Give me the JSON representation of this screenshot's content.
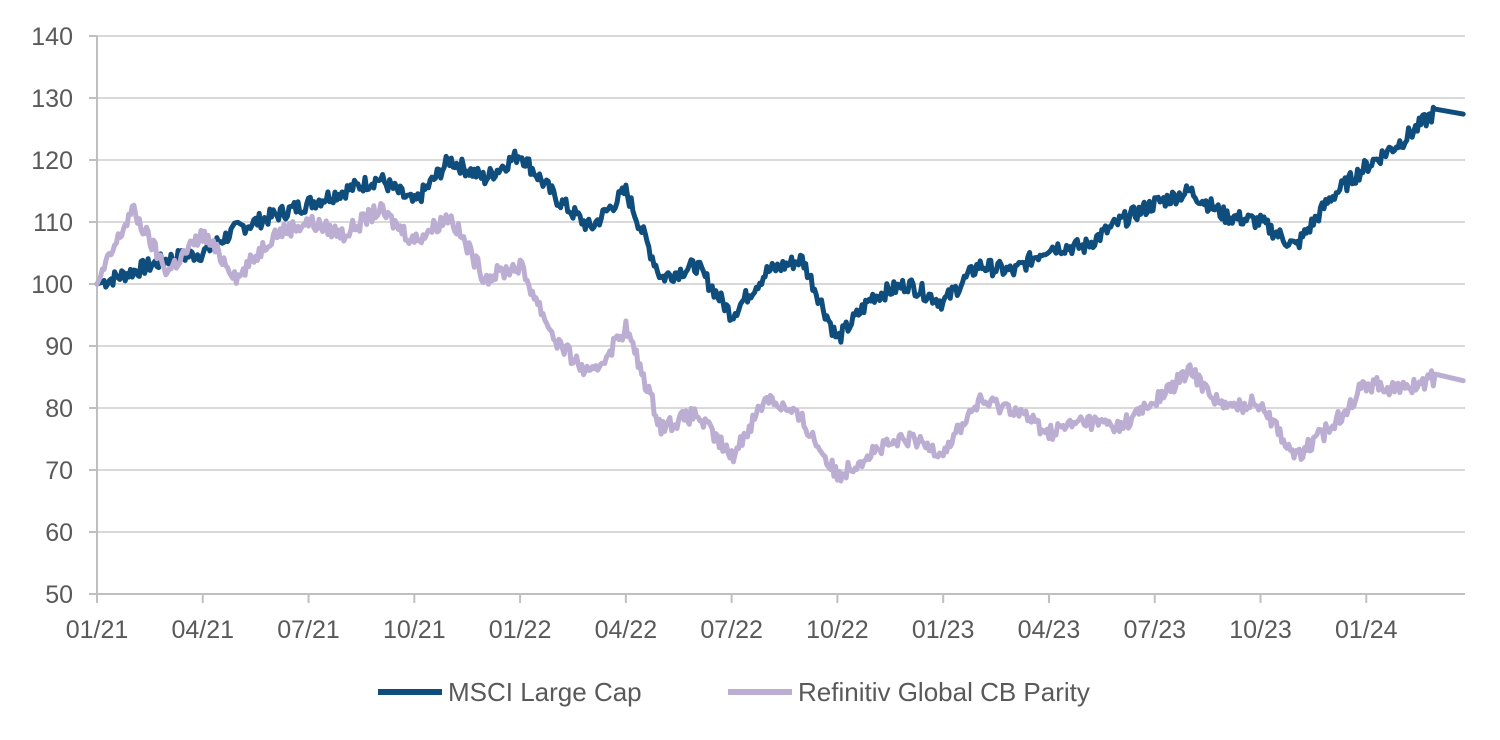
{
  "chart_data": {
    "type": "line",
    "title": "",
    "xlabel": "",
    "ylabel": "",
    "ylim": [
      50,
      140
    ],
    "y_ticks": [
      50,
      60,
      70,
      80,
      90,
      100,
      110,
      120,
      130,
      140
    ],
    "x_ticks": [
      "01/21",
      "04/21",
      "07/21",
      "10/21",
      "01/22",
      "04/22",
      "07/22",
      "10/22",
      "01/23",
      "04/23",
      "07/23",
      "10/23",
      "01/24"
    ],
    "x_range": [
      "2021-01",
      "2024-03"
    ],
    "grid": "horizontal",
    "legend_position": "bottom",
    "series": [
      {
        "name": "MSCI Large Cap",
        "color": "#0E4D7C",
        "x": [
          "2021-01",
          "2021-02",
          "2021-03",
          "2021-04",
          "2021-05",
          "2021-06",
          "2021-07",
          "2021-08",
          "2021-09",
          "2021-10",
          "2021-11",
          "2021-12",
          "2022-01",
          "2022-02",
          "2022-03",
          "2022-04",
          "2022-05",
          "2022-06",
          "2022-07",
          "2022-08",
          "2022-09",
          "2022-10",
          "2022-11",
          "2022-12",
          "2023-01",
          "2023-02",
          "2023-03",
          "2023-04",
          "2023-05",
          "2023-06",
          "2023-07",
          "2023-08",
          "2023-09",
          "2023-10",
          "2023-11",
          "2023-12",
          "2024-01",
          "2024-02",
          "2024-03"
        ],
        "values": [
          100,
          102,
          104,
          105,
          109,
          111,
          113,
          115,
          117,
          113,
          120,
          117,
          121,
          114,
          109,
          115,
          101,
          103,
          95,
          102,
          104,
          91,
          98,
          100,
          97,
          103,
          102,
          106,
          106,
          110,
          113,
          115,
          111,
          110,
          106,
          114,
          119,
          123,
          128
        ]
      },
      {
        "name": "Refinitiv Global CB Parity",
        "color": "#BCAED3",
        "x": [
          "2021-01",
          "2021-02",
          "2021-03",
          "2021-04",
          "2021-05",
          "2021-06",
          "2021-07",
          "2021-08",
          "2021-09",
          "2021-10",
          "2021-11",
          "2021-12",
          "2022-01",
          "2022-02",
          "2022-03",
          "2022-04",
          "2022-05",
          "2022-06",
          "2022-07",
          "2022-08",
          "2022-09",
          "2022-10",
          "2022-11",
          "2022-12",
          "2023-01",
          "2023-02",
          "2023-03",
          "2023-04",
          "2023-05",
          "2023-06",
          "2023-07",
          "2023-08",
          "2023-09",
          "2023-10",
          "2023-11",
          "2023-12",
          "2024-01",
          "2024-02",
          "2024-03"
        ],
        "values": [
          100,
          112,
          102,
          108,
          101,
          108,
          110,
          108,
          112,
          107,
          111,
          101,
          103,
          91,
          85,
          93,
          77,
          79,
          72,
          82,
          78,
          69,
          73,
          75,
          73,
          81,
          80,
          76,
          78,
          77,
          81,
          86,
          80,
          81,
          72,
          77,
          84,
          83,
          85
        ]
      }
    ]
  }
}
